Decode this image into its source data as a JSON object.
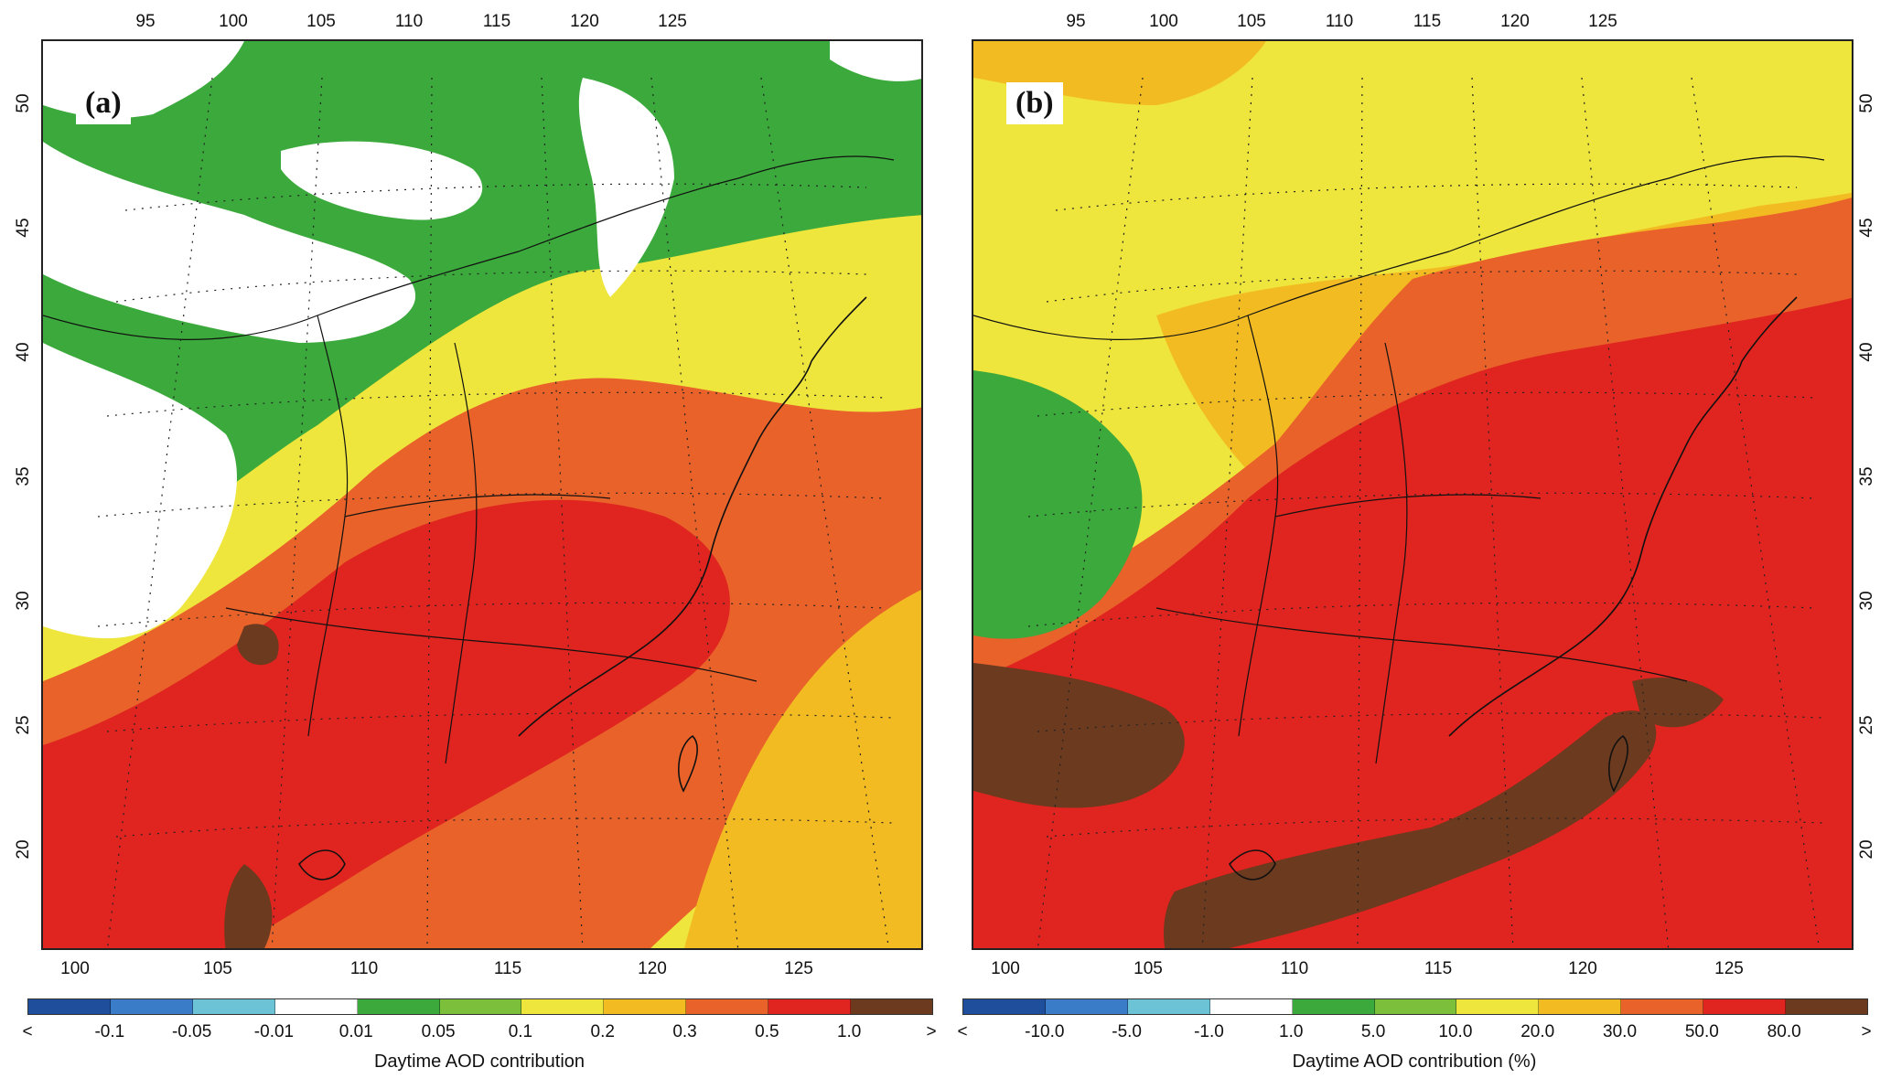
{
  "panels": [
    {
      "label": "(a)",
      "top_lon_ticks": [
        "95",
        "100",
        "105",
        "110",
        "115",
        "120",
        "125"
      ],
      "bottom_lon_ticks": [
        "100",
        "105",
        "110",
        "115",
        "120",
        "125"
      ],
      "lat_ticks": [
        "50",
        "45",
        "40",
        "35",
        "30",
        "25",
        "20"
      ],
      "colorbar": {
        "colors": [
          "#1f4f9c",
          "#3b7cc8",
          "#6cc3d5",
          "#ffffff",
          "#3ba93b",
          "#7cbf3a",
          "#eee63c",
          "#f3bb22",
          "#e8622a",
          "#e0241f",
          "#6b3a1f"
        ],
        "labels": [
          "<",
          "-0.1",
          "-0.05",
          "-0.01",
          "0.01",
          "0.05",
          "0.1",
          "0.2",
          "0.3",
          "0.5",
          "1.0",
          ">"
        ],
        "title": "Daytime AOD contribution"
      }
    },
    {
      "label": "(b)",
      "top_lon_ticks": [
        "95",
        "100",
        "105",
        "110",
        "115",
        "120",
        "125"
      ],
      "bottom_lon_ticks": [
        "100",
        "105",
        "110",
        "115",
        "120",
        "125"
      ],
      "lat_ticks": [
        "50",
        "45",
        "40",
        "35",
        "30",
        "25",
        "20"
      ],
      "colorbar": {
        "colors": [
          "#1f4f9c",
          "#3b7cc8",
          "#6cc3d5",
          "#ffffff",
          "#3ba93b",
          "#7cbf3a",
          "#eee63c",
          "#f3bb22",
          "#e8622a",
          "#e0241f",
          "#6b3a1f"
        ],
        "labels": [
          "<",
          "-10.0",
          "-5.0",
          "-1.0",
          "1.0",
          "5.0",
          "10.0",
          "20.0",
          "30.0",
          "50.0",
          "80.0",
          ">"
        ],
        "title": "Daytime AOD contribution (%)"
      }
    }
  ]
}
